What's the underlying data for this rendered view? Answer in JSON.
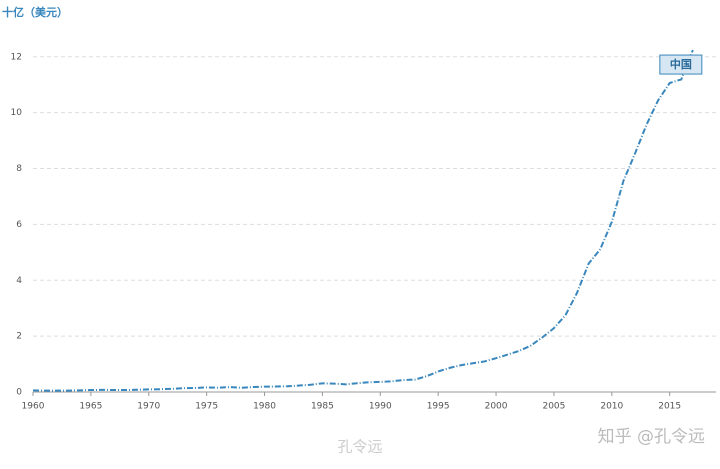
{
  "chart_data": {
    "type": "line",
    "y_label": "十亿（美元）",
    "x": [
      1960,
      1961,
      1962,
      1963,
      1964,
      1965,
      1966,
      1967,
      1968,
      1969,
      1970,
      1971,
      1972,
      1973,
      1974,
      1975,
      1976,
      1977,
      1978,
      1979,
      1980,
      1981,
      1982,
      1983,
      1984,
      1985,
      1986,
      1987,
      1988,
      1989,
      1990,
      1991,
      1992,
      1993,
      1994,
      1995,
      1996,
      1997,
      1998,
      1999,
      2000,
      2001,
      2002,
      2003,
      2004,
      2005,
      2006,
      2007,
      2008,
      2009,
      2010,
      2011,
      2012,
      2013,
      2014,
      2015,
      2016,
      2017
    ],
    "series": [
      {
        "name": "中国",
        "color": "#3a87bd",
        "values": [
          0.06,
          0.05,
          0.047,
          0.051,
          0.06,
          0.07,
          0.076,
          0.072,
          0.07,
          0.079,
          0.093,
          0.1,
          0.114,
          0.139,
          0.144,
          0.164,
          0.154,
          0.175,
          0.15,
          0.178,
          0.191,
          0.196,
          0.205,
          0.231,
          0.26,
          0.309,
          0.3,
          0.273,
          0.312,
          0.348,
          0.361,
          0.383,
          0.427,
          0.445,
          0.564,
          0.734,
          0.863,
          0.962,
          1.029,
          1.094,
          1.211,
          1.339,
          1.471,
          1.66,
          1.955,
          2.286,
          2.752,
          3.552,
          4.598,
          5.11,
          6.087,
          7.552,
          8.532,
          9.57,
          10.44,
          11.06,
          11.19,
          12.24
        ]
      }
    ],
    "xlim": [
      1960,
      2019
    ],
    "xticks": [
      1960,
      1965,
      1970,
      1975,
      1980,
      1985,
      1990,
      1995,
      2000,
      2005,
      2010,
      2015
    ],
    "ylim": [
      0,
      12.6
    ],
    "yticks": [
      0,
      2,
      4,
      6,
      8,
      10,
      12
    ],
    "grid": true,
    "watermarks": [
      "知乎 @孔令远",
      "孔令远"
    ]
  }
}
